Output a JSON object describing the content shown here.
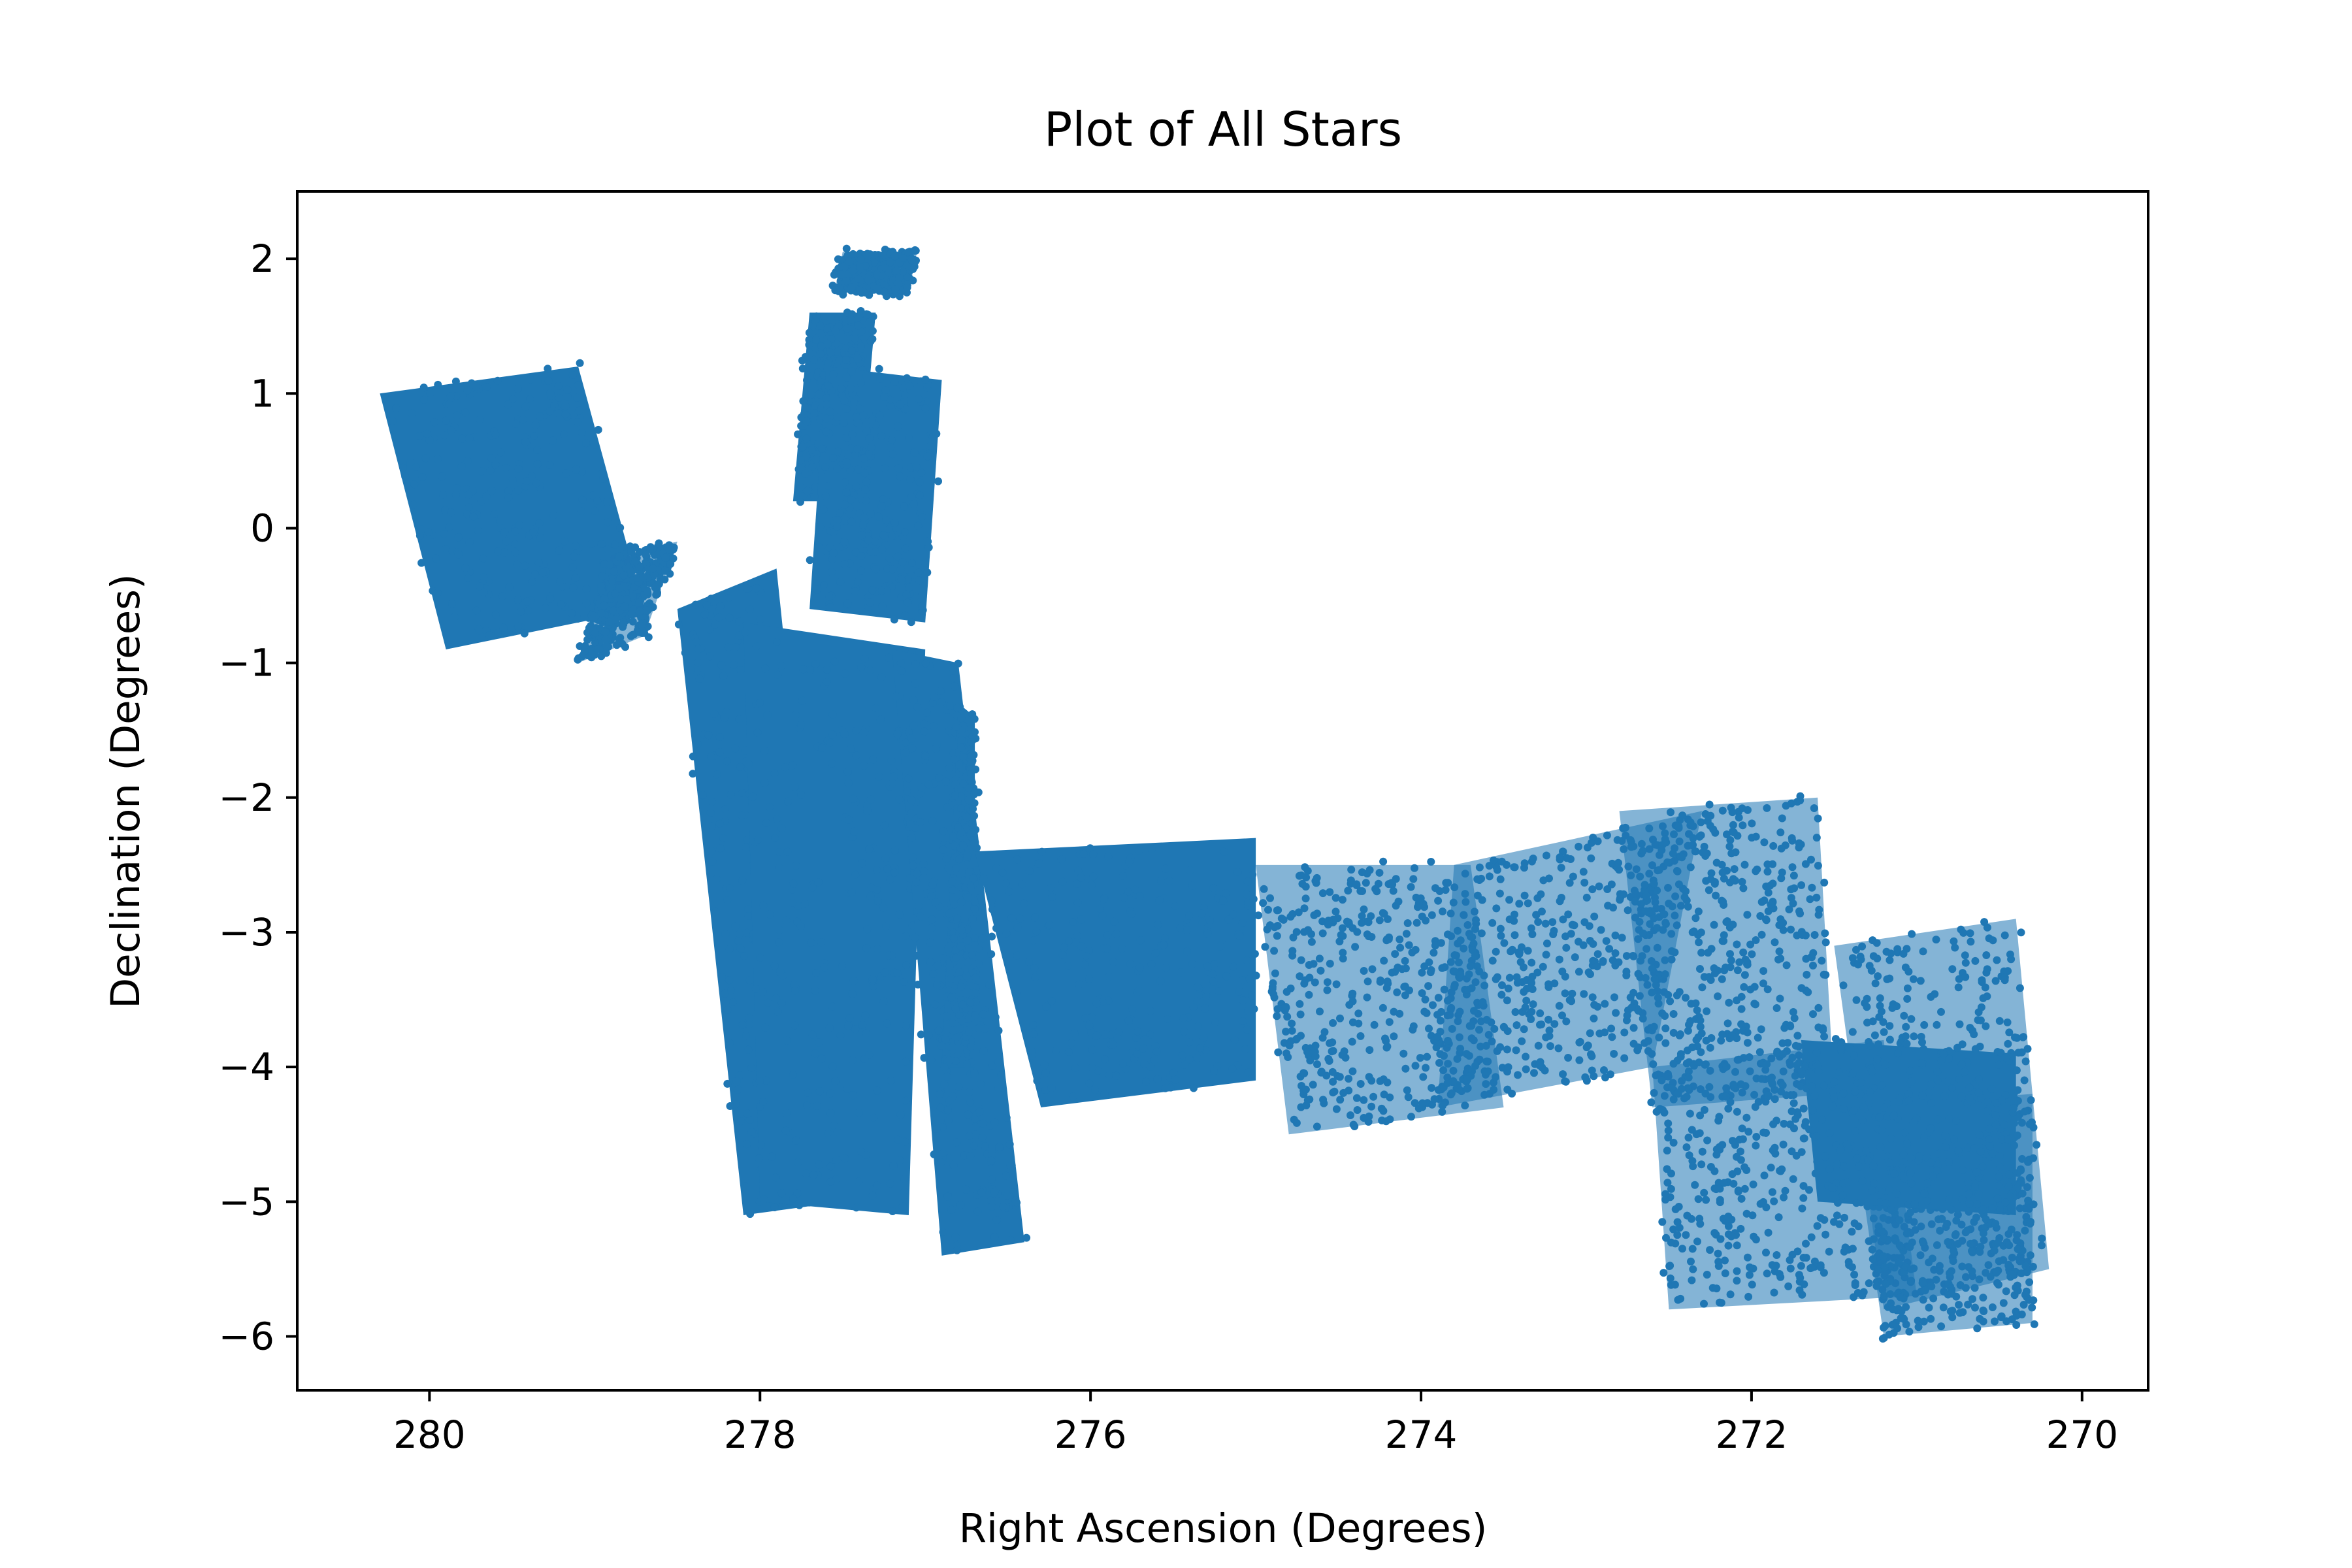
{
  "chart_data": {
    "type": "scatter",
    "title": "Plot of All Stars",
    "xlabel": "Right Ascension (Degrees)",
    "ylabel": "Declination (Degrees)",
    "xlim": [
      280.8,
      269.6
    ],
    "ylim": [
      -6.4,
      2.5
    ],
    "xticks": [
      280,
      278,
      276,
      274,
      272,
      270
    ],
    "xtick_labels": [
      "280",
      "278",
      "276",
      "274",
      "272",
      "270"
    ],
    "yticks": [
      2,
      1,
      0,
      -1,
      -2,
      -3,
      -4,
      -5,
      -6
    ],
    "ytick_labels": [
      "2",
      "1",
      "0",
      "−1",
      "−2",
      "−3",
      "−4",
      "−5",
      "−6"
    ],
    "grid": false,
    "legend": "none",
    "marker_color": "#1f77b4",
    "regions": [
      {
        "corners": [
          [
            280.3,
            1.0
          ],
          [
            279.1,
            1.2
          ],
          [
            278.7,
            -0.6
          ],
          [
            279.9,
            -0.9
          ]
        ],
        "density": "high"
      },
      {
        "corners": [
          [
            278.9,
            -0.2
          ],
          [
            278.5,
            -0.1
          ],
          [
            278.7,
            -0.8
          ],
          [
            279.1,
            -1.0
          ]
        ],
        "density": "medium"
      },
      {
        "corners": [
          [
            277.7,
            1.6
          ],
          [
            277.3,
            1.6
          ],
          [
            277.4,
            0.2
          ],
          [
            277.8,
            0.2
          ]
        ],
        "density": "high"
      },
      {
        "corners": [
          [
            277.5,
            2.05
          ],
          [
            277.05,
            2.05
          ],
          [
            277.1,
            1.75
          ],
          [
            277.55,
            1.75
          ]
        ],
        "density": "medium"
      },
      {
        "corners": [
          [
            277.6,
            1.2
          ],
          [
            276.9,
            1.1
          ],
          [
            277.0,
            -0.7
          ],
          [
            277.7,
            -0.6
          ]
        ],
        "density": "high"
      },
      {
        "corners": [
          [
            278.5,
            -0.6
          ],
          [
            277.9,
            -0.3
          ],
          [
            277.5,
            -5.0
          ],
          [
            278.1,
            -5.1
          ]
        ],
        "density": "high"
      },
      {
        "corners": [
          [
            278.1,
            -0.7
          ],
          [
            277.0,
            -0.9
          ],
          [
            277.1,
            -5.1
          ],
          [
            278.0,
            -5.0
          ]
        ],
        "density": "high"
      },
      {
        "corners": [
          [
            277.2,
            -0.9
          ],
          [
            276.8,
            -1.0
          ],
          [
            276.4,
            -5.3
          ],
          [
            276.9,
            -5.4
          ]
        ],
        "density": "high"
      },
      {
        "corners": [
          [
            276.8,
            -1.3
          ],
          [
            276.7,
            -1.4
          ],
          [
            276.7,
            -4.0
          ],
          [
            276.9,
            -4.0
          ]
        ],
        "density": "high"
      },
      {
        "corners": [
          [
            276.7,
            -2.4
          ],
          [
            275.0,
            -2.3
          ],
          [
            275.0,
            -4.1
          ],
          [
            276.3,
            -4.3
          ]
        ],
        "density": "high"
      },
      {
        "corners": [
          [
            275.0,
            -2.5
          ],
          [
            273.7,
            -2.5
          ],
          [
            273.5,
            -4.3
          ],
          [
            274.8,
            -4.5
          ]
        ],
        "density": "medium"
      },
      {
        "corners": [
          [
            273.8,
            -2.5
          ],
          [
            272.3,
            -2.1
          ],
          [
            272.6,
            -4.0
          ],
          [
            273.9,
            -4.3
          ]
        ],
        "density": "medium"
      },
      {
        "corners": [
          [
            272.8,
            -2.1
          ],
          [
            271.6,
            -2.0
          ],
          [
            271.5,
            -4.2
          ],
          [
            272.6,
            -4.3
          ]
        ],
        "density": "medium"
      },
      {
        "corners": [
          [
            272.6,
            -4.0
          ],
          [
            271.2,
            -3.8
          ],
          [
            271.0,
            -5.7
          ],
          [
            272.5,
            -5.8
          ]
        ],
        "density": "medium"
      },
      {
        "corners": [
          [
            271.5,
            -3.1
          ],
          [
            270.4,
            -2.9
          ],
          [
            270.2,
            -5.5
          ],
          [
            271.2,
            -5.8
          ]
        ],
        "density": "medium"
      },
      {
        "corners": [
          [
            271.4,
            -4.3
          ],
          [
            270.3,
            -4.2
          ],
          [
            270.3,
            -5.9
          ],
          [
            271.2,
            -6.0
          ]
        ],
        "density": "medium"
      },
      {
        "corners": [
          [
            271.7,
            -3.8
          ],
          [
            270.4,
            -3.9
          ],
          [
            270.4,
            -5.1
          ],
          [
            271.6,
            -5.0
          ]
        ],
        "density": "high"
      }
    ]
  }
}
